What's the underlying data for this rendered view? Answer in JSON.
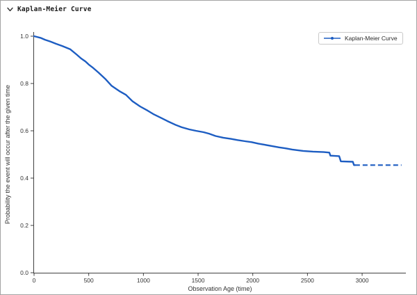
{
  "header": {
    "title": "Kaplan-Meier Curve",
    "collapse_icon": "chevron-down",
    "state": "expanded"
  },
  "chart_data": {
    "type": "line",
    "title": "",
    "xlabel": "Observation Age (time)",
    "ylabel": "Probability the event will occur after the given time",
    "xlim": [
      0,
      3400
    ],
    "ylim": [
      0.0,
      1.0
    ],
    "xticks": [
      0,
      500,
      1000,
      1500,
      2000,
      2500,
      3000
    ],
    "yticks": [
      0.0,
      0.2,
      0.4,
      0.6,
      0.8,
      1.0
    ],
    "grid": false,
    "legend": {
      "position": "top-right",
      "entries": [
        {
          "label": "Kaplan-Meier Curve",
          "color": "#1d5dc2",
          "marker": "circle"
        }
      ]
    },
    "series": [
      {
        "name": "Kaplan-Meier Curve",
        "color": "#1d5dc2",
        "x": [
          0,
          25,
          60,
          100,
          150,
          200,
          260,
          330,
          390,
          430,
          470,
          500,
          540,
          590,
          650,
          710,
          780,
          840,
          900,
          970,
          1040,
          1090,
          1160,
          1220,
          1290,
          1350,
          1420,
          1480,
          1550,
          1600,
          1660,
          1730,
          1800,
          1860,
          1930,
          1990,
          2050,
          2110,
          2170,
          2240,
          2300,
          2360,
          2460,
          2550,
          2650,
          2700,
          2710,
          2790,
          2805,
          2915,
          2925,
          2935
        ],
        "y": [
          1.0,
          0.997,
          0.993,
          0.985,
          0.977,
          0.968,
          0.958,
          0.945,
          0.922,
          0.906,
          0.893,
          0.88,
          0.866,
          0.846,
          0.82,
          0.79,
          0.768,
          0.752,
          0.725,
          0.703,
          0.685,
          0.671,
          0.655,
          0.641,
          0.626,
          0.615,
          0.606,
          0.6,
          0.594,
          0.588,
          0.578,
          0.571,
          0.566,
          0.561,
          0.556,
          0.552,
          0.546,
          0.541,
          0.536,
          0.53,
          0.526,
          0.521,
          0.515,
          0.512,
          0.51,
          0.508,
          0.495,
          0.493,
          0.471,
          0.469,
          0.455,
          0.455
        ]
      }
    ],
    "censored_tail": {
      "t_start": 2935,
      "t_end": 3360,
      "p": 0.455,
      "style": "dashed"
    }
  },
  "colors": {
    "line": "#1d5dc2",
    "axis": "#3f3f3f",
    "tick_label": "#333333",
    "frame_border": "#a3a3a3"
  }
}
